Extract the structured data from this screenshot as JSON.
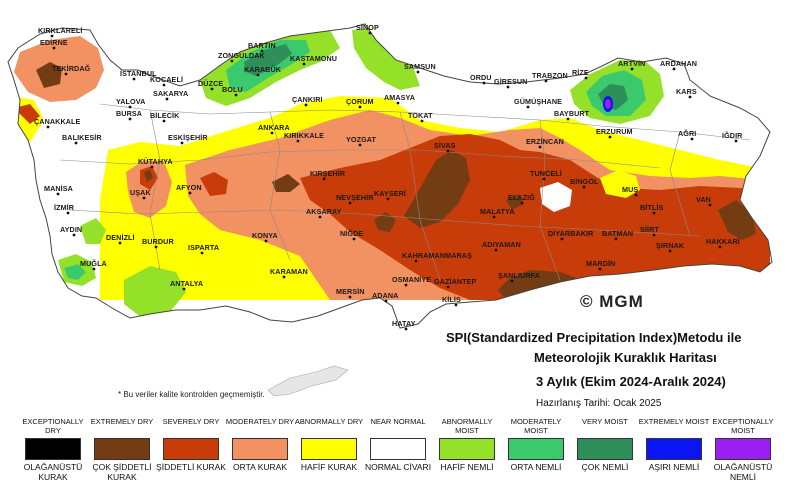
{
  "map": {
    "copyright": "© MGM",
    "title_line1": "SPI(Standardized Precipitation Index)Metodu ile",
    "title_line2": "Meteorolojik Kuraklık Haritası",
    "title_line3": "3 Aylık (Ekim 2024-Aralık 2024)",
    "prepared": "Hazırlanış Tarihi: Ocak 2025",
    "note": "* Bu veriler kalite kontrolden geçmemiştir.",
    "cities": [
      "KIRKLARELİ",
      "EDİRNE",
      "TEKİRDAĞ",
      "İSTANBUL",
      "KOCAELİ",
      "SAKARYA",
      "YALOVA",
      "BURSA",
      "BİLECİK",
      "ÇANAKKALE",
      "BALIKESİR",
      "ESKİŞEHİR",
      "KÜTAHYA",
      "UŞAK",
      "MANİSA",
      "İZMİR",
      "AYDIN",
      "DENİZLİ",
      "MUĞLA",
      "BURDUR",
      "ISPARTA",
      "AFYON",
      "ANTALYA",
      "KONYA",
      "KARAMAN",
      "MERSİN",
      "ADANA",
      "HATAY",
      "OSMANİYE",
      "KİLİS",
      "GAZİANTEP",
      "ŞANLIURFA",
      "ADIYAMAN",
      "KAHRAMANMARAŞ",
      "MALATYA",
      "ELAZIĞ",
      "TUNCELİ",
      "BİNGÖL",
      "MUŞ",
      "BİTLİS",
      "VAN",
      "HAKKARİ",
      "ŞIRNAK",
      "SİİRT",
      "BATMAN",
      "DİYARBAKIR",
      "MARDİN",
      "NİĞDE",
      "AKSARAY",
      "NEVŞEHİR",
      "KAYSERİ",
      "KIRŞEHİR",
      "KIRIKKALE",
      "ANKARA",
      "YOZGAT",
      "SİVAS",
      "ÇORUM",
      "AMASYA",
      "TOKAT",
      "ÇANKIRI",
      "KASTAMONU",
      "SİNOP",
      "SAMSUN",
      "ORDU",
      "GİRESUN",
      "TRABZON",
      "RİZE",
      "ARTVİN",
      "ARDAHAN",
      "KARS",
      "IĞDIR",
      "AĞRI",
      "ERZURUM",
      "BAYBURT",
      "GÜMÜŞHANE",
      "ERZİNCAN",
      "BARTIN",
      "ZONGULDAK",
      "KARABÜK",
      "DÜZCE",
      "BOLU"
    ]
  },
  "legend": [
    {
      "en": "EXCEPTIONALLY DRY",
      "tr": "OLAĞANÜSTÜ KURAK",
      "color": "#000000"
    },
    {
      "en": "EXTREMELY DRY",
      "tr": "ÇOK ŞİDDETLİ KURAK",
      "color": "#733c13"
    },
    {
      "en": "SEVERELY DRY",
      "tr": "ŞİDDETLİ KURAK",
      "color": "#c83c0a"
    },
    {
      "en": "MODERATELY DRY",
      "tr": "ORTA KURAK",
      "color": "#f29161"
    },
    {
      "en": "ABNORMALLY DRY",
      "tr": "HAFİF KURAK",
      "color": "#ffff00"
    },
    {
      "en": "NEAR NORMAL",
      "tr": "NORMAL CİVARI",
      "color": "#ffffff"
    },
    {
      "en": "ABNORMALLY MOIST",
      "tr": "HAFİF NEMLİ",
      "color": "#95e12a"
    },
    {
      "en": "MODERATELY MOIST",
      "tr": "ORTA NEMLİ",
      "color": "#3bc96e"
    },
    {
      "en": "VERY MOIST",
      "tr": "ÇOK NEMLİ",
      "color": "#2f8f5b"
    },
    {
      "en": "EXTREMELY MOIST",
      "tr": "AŞIRI NEMLİ",
      "color": "#0a14f5"
    },
    {
      "en": "EXCEPTIONALLY MOIST",
      "tr": "OLAĞANÜSTÜ NEMLİ",
      "color": "#9b1ff1"
    }
  ]
}
